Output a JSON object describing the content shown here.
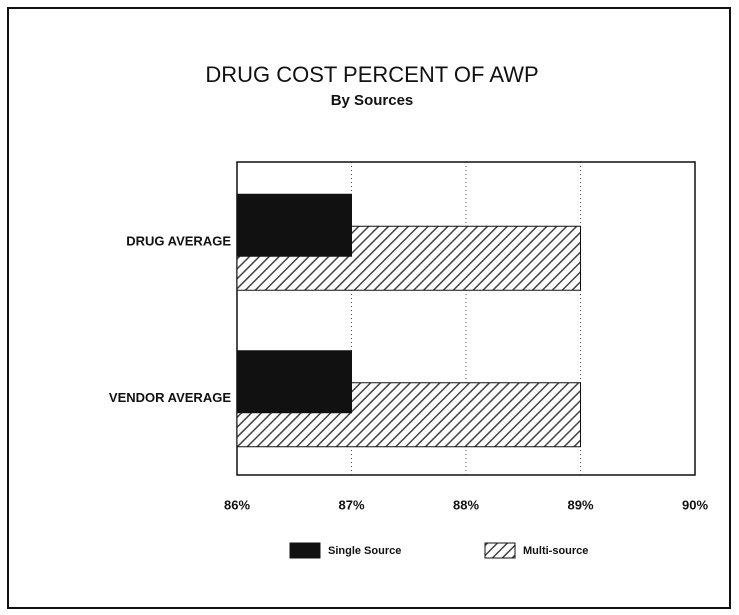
{
  "chart_data": {
    "type": "hbar",
    "title": "DRUG COST PERCENT OF AWP",
    "subtitle": "By Sources",
    "categories": [
      "DRUG AVERAGE",
      "VENDOR AVERAGE"
    ],
    "series": [
      {
        "name": "Single Source",
        "color": "#111111",
        "values": [
          87,
          87
        ]
      },
      {
        "name": "Multi-source",
        "color": "#444444",
        "values": [
          89,
          89
        ]
      }
    ],
    "xlim": [
      86,
      90
    ],
    "xticks": [
      {
        "value": 86,
        "label": "86%"
      },
      {
        "value": 87,
        "label": "87%"
      },
      {
        "value": 88,
        "label": "88%"
      },
      {
        "value": 89,
        "label": "89%"
      },
      {
        "value": 90,
        "label": "90%"
      }
    ],
    "grid": true
  }
}
